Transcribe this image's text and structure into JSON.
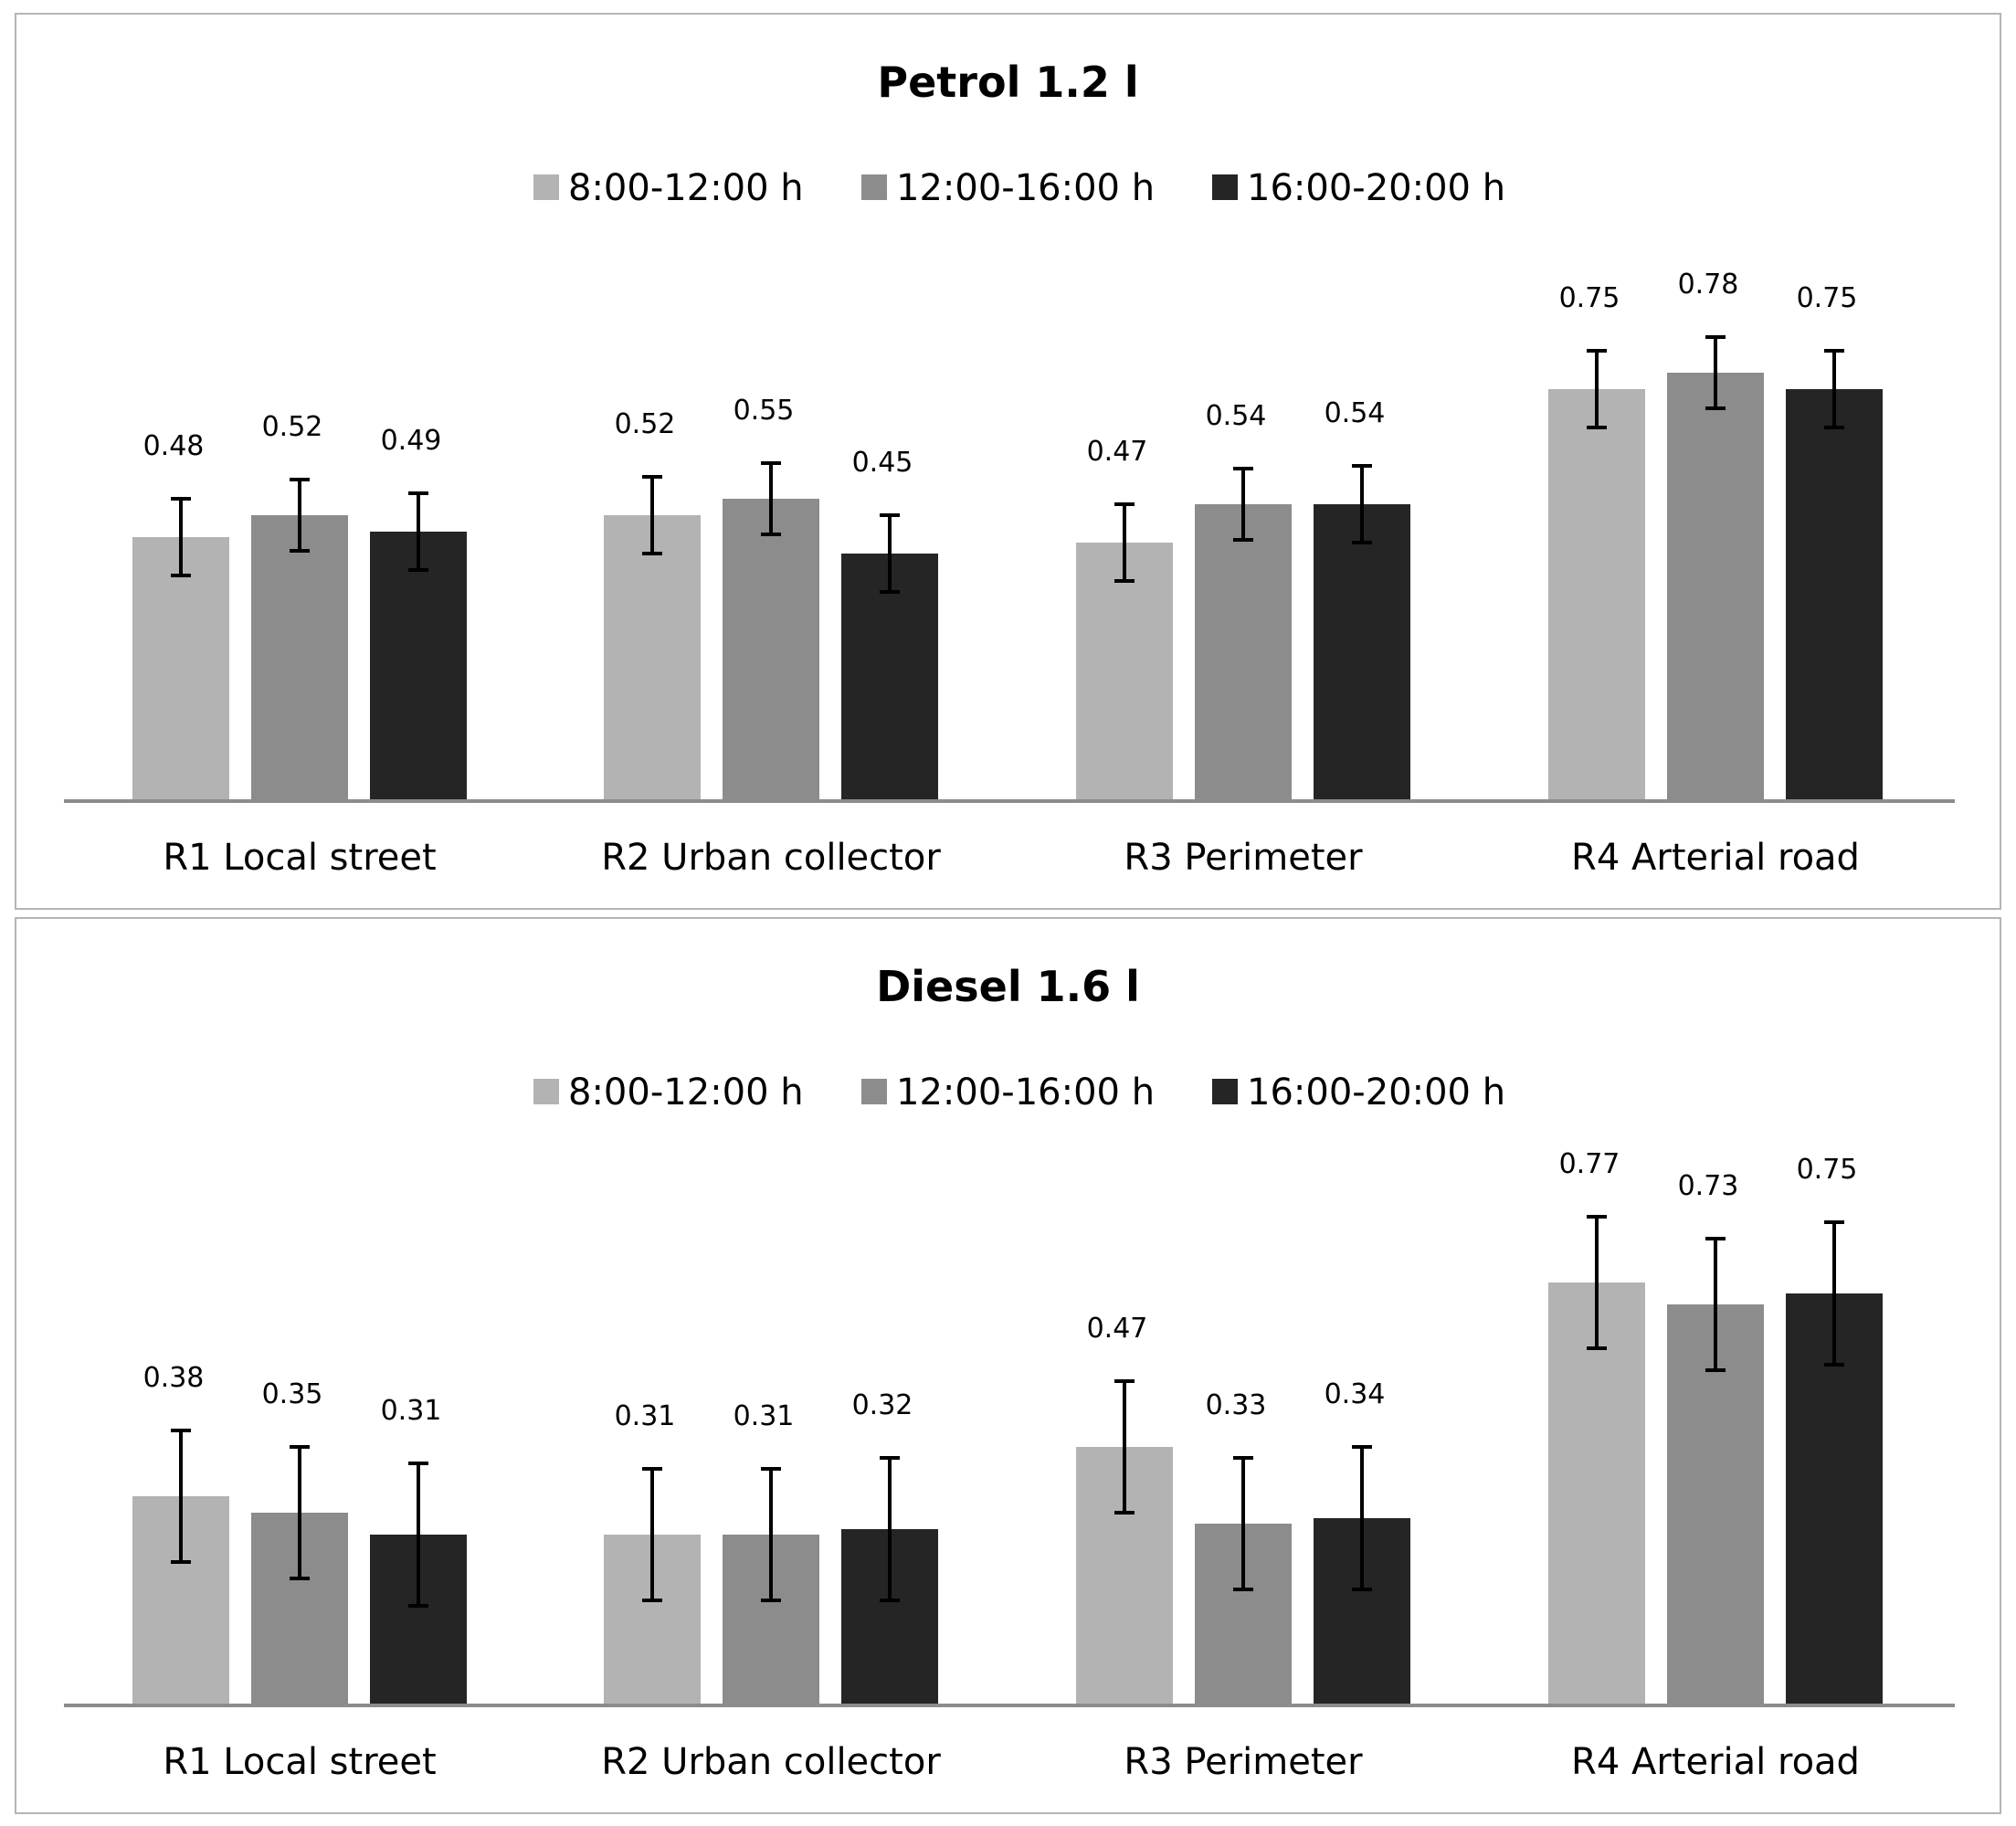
{
  "chart_data": [
    {
      "type": "bar",
      "title": "Petrol 1.2 l",
      "categories": [
        "R1 Local street",
        "R2 Urban collector",
        "R3 Perimeter",
        "R4 Arterial road"
      ],
      "series": [
        {
          "name": "8:00-12:00 h",
          "color": "#b3b3b3",
          "values": [
            0.48,
            0.52,
            0.47,
            0.75
          ],
          "error": [
            0.07,
            0.07,
            0.07,
            0.07
          ]
        },
        {
          "name": "12:00-16:00 h",
          "color": "#8c8c8c",
          "values": [
            0.52,
            0.55,
            0.54,
            0.78
          ],
          "error": [
            0.065,
            0.065,
            0.065,
            0.065
          ]
        },
        {
          "name": "16:00-20:00 h",
          "color": "#252525",
          "values": [
            0.49,
            0.45,
            0.54,
            0.75
          ],
          "error": [
            0.07,
            0.07,
            0.07,
            0.07
          ]
        }
      ],
      "xlabel": "",
      "ylabel": "",
      "ylim": [
        0,
        1.0
      ],
      "grid": false,
      "legend": "top-center"
    },
    {
      "type": "bar",
      "title": "Diesel 1.6 l",
      "categories": [
        "R1 Local street",
        "R2 Urban collector",
        "R3 Perimeter",
        "R4 Arterial road"
      ],
      "series": [
        {
          "name": "8:00-12:00 h",
          "color": "#b3b3b3",
          "values": [
            0.38,
            0.31,
            0.47,
            0.77
          ],
          "error": [
            0.12,
            0.12,
            0.12,
            0.12
          ]
        },
        {
          "name": "12:00-16:00 h",
          "color": "#8c8c8c",
          "values": [
            0.35,
            0.31,
            0.33,
            0.73
          ],
          "error": [
            0.12,
            0.12,
            0.12,
            0.12
          ]
        },
        {
          "name": "16:00-20:00 h",
          "color": "#252525",
          "values": [
            0.31,
            0.32,
            0.34,
            0.75
          ],
          "error": [
            0.13,
            0.13,
            0.13,
            0.13
          ]
        }
      ],
      "xlabel": "",
      "ylabel": "",
      "ylim": [
        0,
        1.0
      ],
      "grid": false,
      "legend": "top-center"
    }
  ]
}
